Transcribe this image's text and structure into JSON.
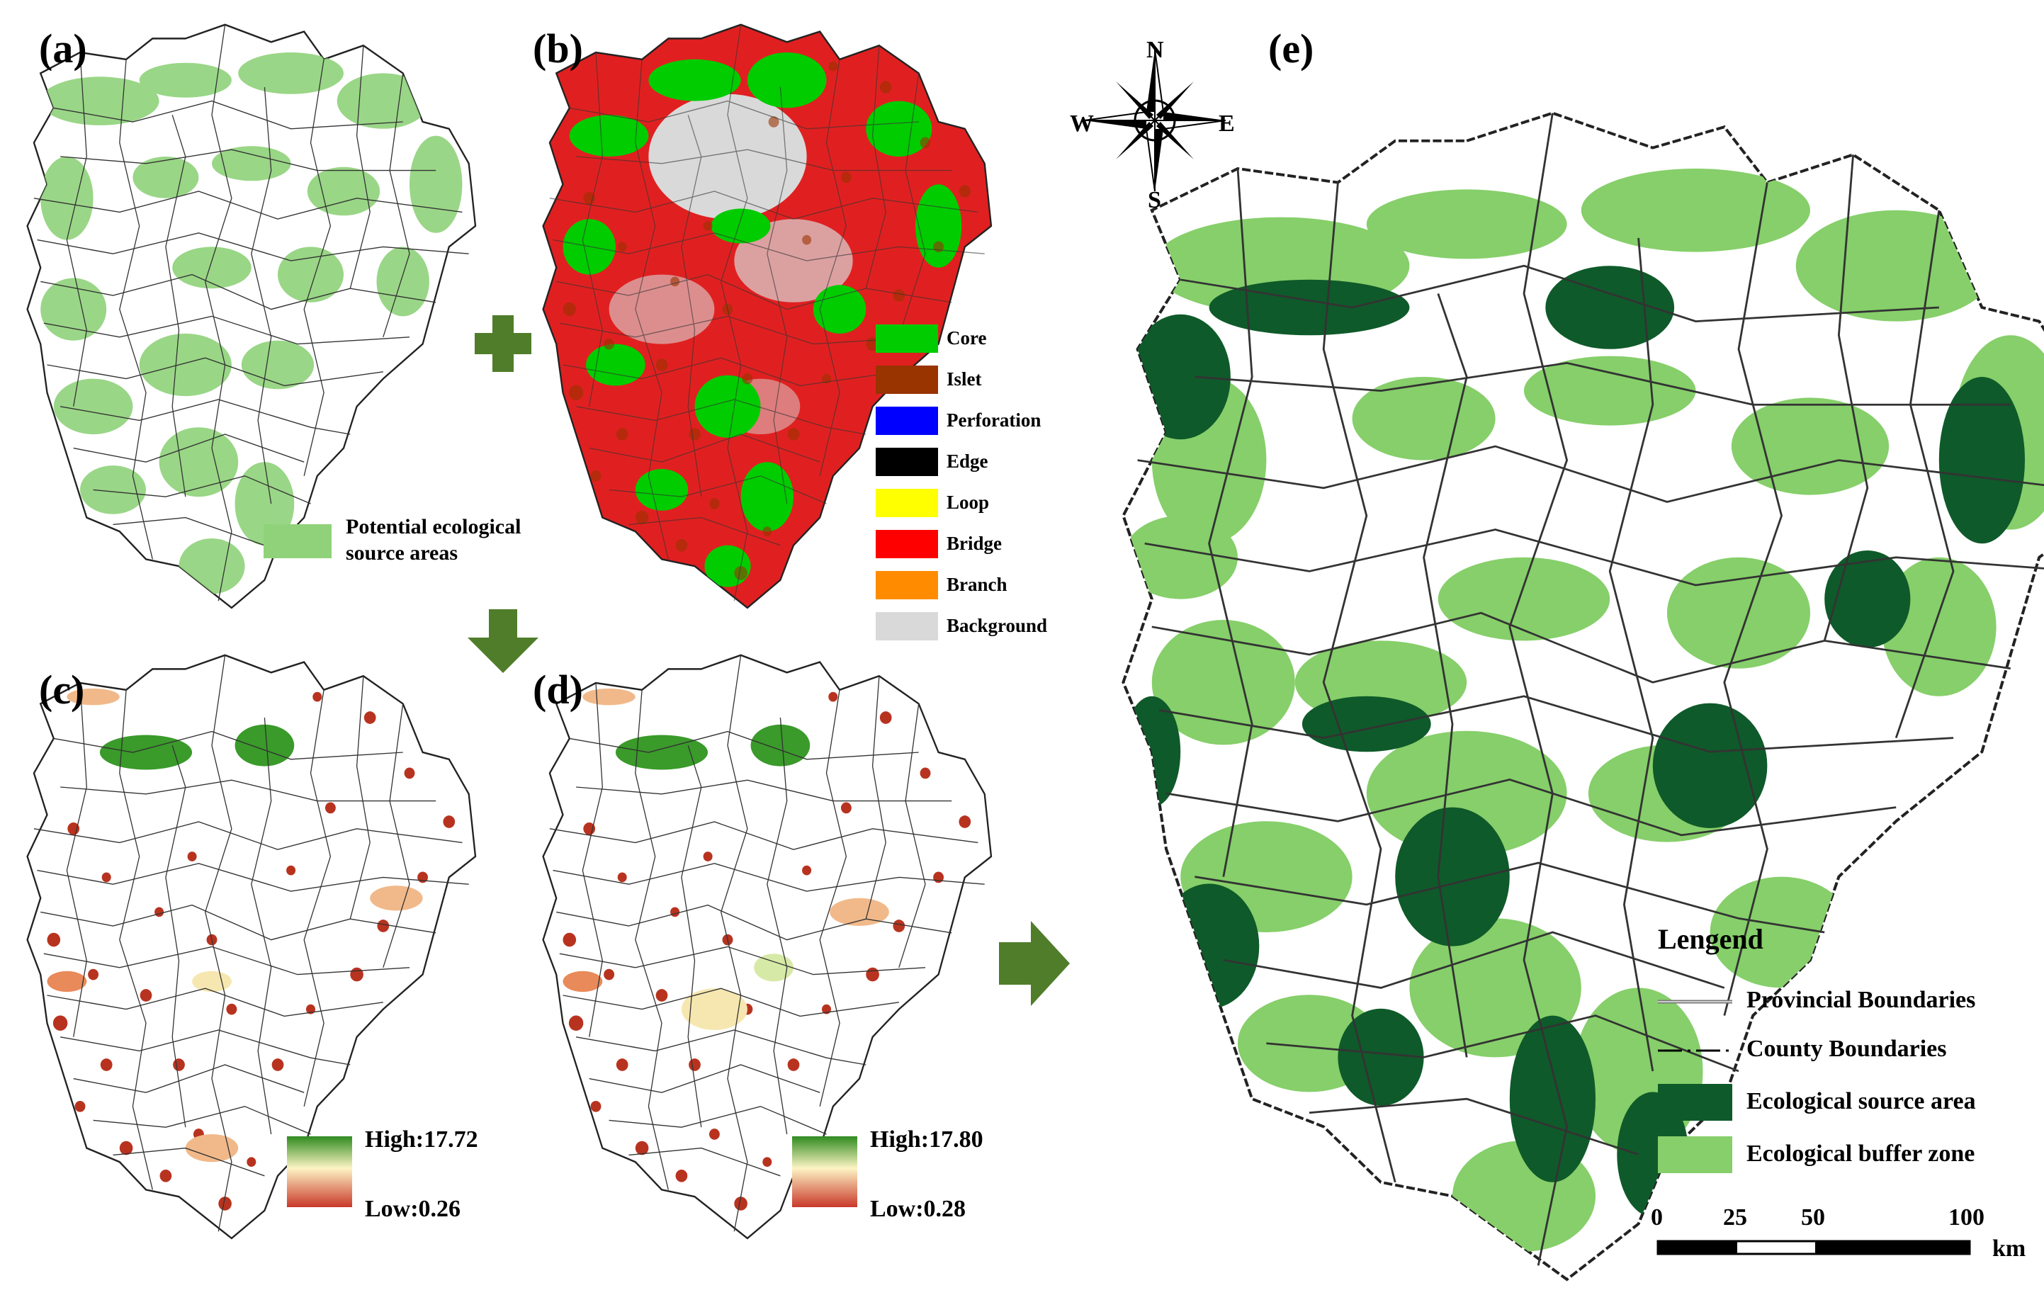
{
  "panels": {
    "a": {
      "label": "(a)",
      "legend": [
        "Potential ecological",
        "source areas"
      ]
    },
    "b": {
      "label": "(b)"
    },
    "c": {
      "label": "(c)",
      "high": "High:17.72",
      "low": "Low:0.26"
    },
    "d": {
      "label": "(d)",
      "high": "High:17.80",
      "low": "Low:0.28"
    },
    "e": {
      "label": "(e)"
    }
  },
  "mspa_legend": [
    {
      "label": "Core",
      "color": "#00cc00"
    },
    {
      "label": "Islet",
      "color": "#993300"
    },
    {
      "label": "Perforation",
      "color": "#0000ff"
    },
    {
      "label": "Edge",
      "color": "#000000"
    },
    {
      "label": "Loop",
      "color": "#ffff00"
    },
    {
      "label": "Bridge",
      "color": "#ff0000"
    },
    {
      "label": "Branch",
      "color": "#ff8c00"
    },
    {
      "label": "Background",
      "color": "#d9d9d9"
    }
  ],
  "compass": {
    "n": "N",
    "s": "S",
    "e": "E",
    "w": "W"
  },
  "main_legend": {
    "title": "Lengend",
    "items": [
      {
        "label": "Provincial Boundaries",
        "kind": "line-double"
      },
      {
        "label": "County Boundaries",
        "kind": "line-dashdot"
      },
      {
        "label": "Ecological source area",
        "kind": "fill",
        "color": "#0f5a2a"
      },
      {
        "label": "Ecological buffer zone",
        "kind": "fill",
        "color": "#86cf6a"
      }
    ]
  },
  "scalebar": {
    "ticks": [
      "0",
      "25",
      "50",
      "100"
    ],
    "unit": "km"
  },
  "colors": {
    "potential": "#8fd27a",
    "source": "#0f5a2a",
    "buffer": "#86cf6a",
    "arrow": "#507d2a"
  }
}
